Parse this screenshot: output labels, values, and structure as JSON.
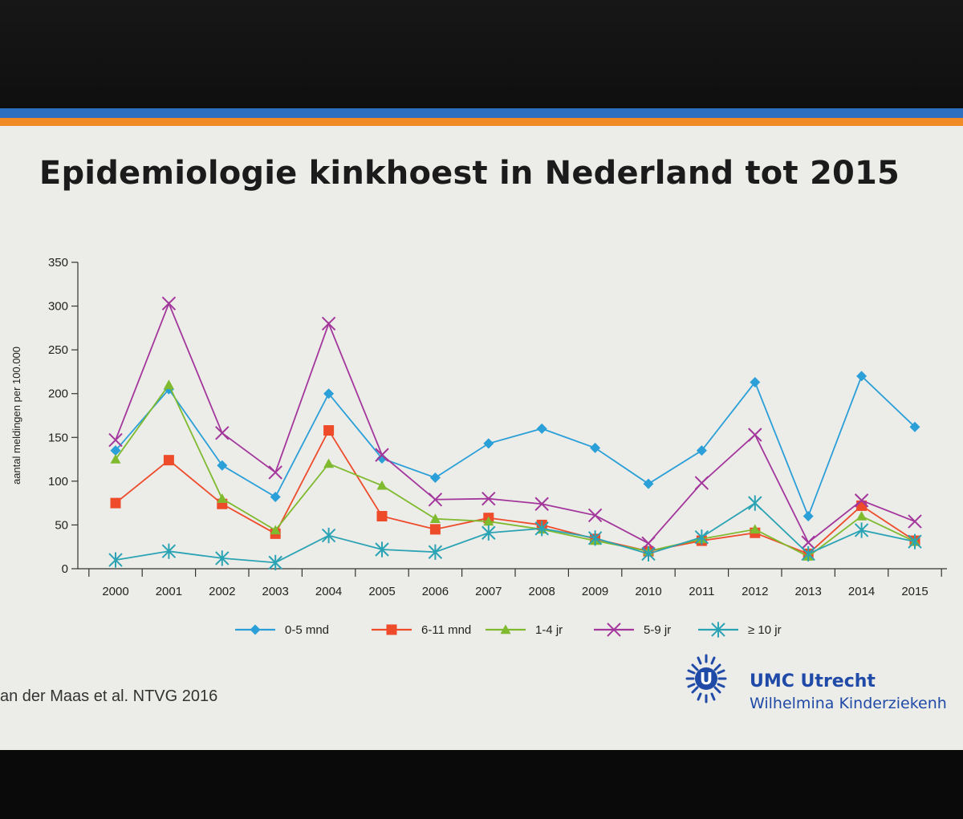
{
  "slide": {
    "title": "Epidemiologie kinkhoest in Nederland tot 2015",
    "citation": "an der Maas et al. NTVG 2016",
    "brand": {
      "name": "UMC Utrecht",
      "subtitle": "Wilhelmina Kinderziekenh",
      "logo_icon": "umc-utrecht-sun-logo-icon",
      "logo_letter": "U"
    },
    "colors": {
      "top_bar": "#2c6fc0",
      "accent_bar": "#f08a24",
      "brand": "#1f4aa8"
    }
  },
  "chart_data": {
    "type": "line",
    "title": "Epidemiologie kinkhoest in Nederland tot 2015",
    "xlabel": "",
    "ylabel": "aantal meldingen per 100.000",
    "ylim": [
      0,
      350
    ],
    "yticks": [
      0,
      50,
      100,
      150,
      200,
      250,
      300,
      350
    ],
    "grid": false,
    "legend_position": "bottom",
    "categories": [
      "2000",
      "2001",
      "2002",
      "2003",
      "2004",
      "2005",
      "2006",
      "2007",
      "2008",
      "2009",
      "2010",
      "2011",
      "2012",
      "2013",
      "2014",
      "2015"
    ],
    "series": [
      {
        "name": "0-5 mnd",
        "color": "#2a9fd8",
        "marker": "diamond",
        "values": [
          135,
          205,
          118,
          82,
          200,
          126,
          104,
          143,
          160,
          138,
          97,
          135,
          213,
          60,
          220,
          162
        ]
      },
      {
        "name": "6-11 mnd",
        "color": "#ee4b2b",
        "marker": "square",
        "values": [
          75,
          124,
          74,
          40,
          158,
          60,
          45,
          58,
          50,
          34,
          20,
          32,
          41,
          17,
          72,
          32
        ]
      },
      {
        "name": "1-4 jr",
        "color": "#7fba2f",
        "marker": "triangle",
        "values": [
          125,
          210,
          80,
          44,
          120,
          95,
          57,
          54,
          45,
          32,
          20,
          34,
          45,
          14,
          60,
          31
        ]
      },
      {
        "name": "5-9 jr",
        "color": "#a3379c",
        "marker": "x",
        "values": [
          147,
          303,
          155,
          110,
          280,
          130,
          79,
          80,
          74,
          61,
          29,
          98,
          153,
          30,
          78,
          54
        ]
      },
      {
        "name": "≥ 10 jr",
        "color": "#2aa3b4",
        "marker": "asterisk",
        "values": [
          10,
          20,
          12,
          7,
          38,
          22,
          19,
          41,
          46,
          35,
          17,
          36,
          75,
          17,
          44,
          31
        ]
      }
    ]
  }
}
